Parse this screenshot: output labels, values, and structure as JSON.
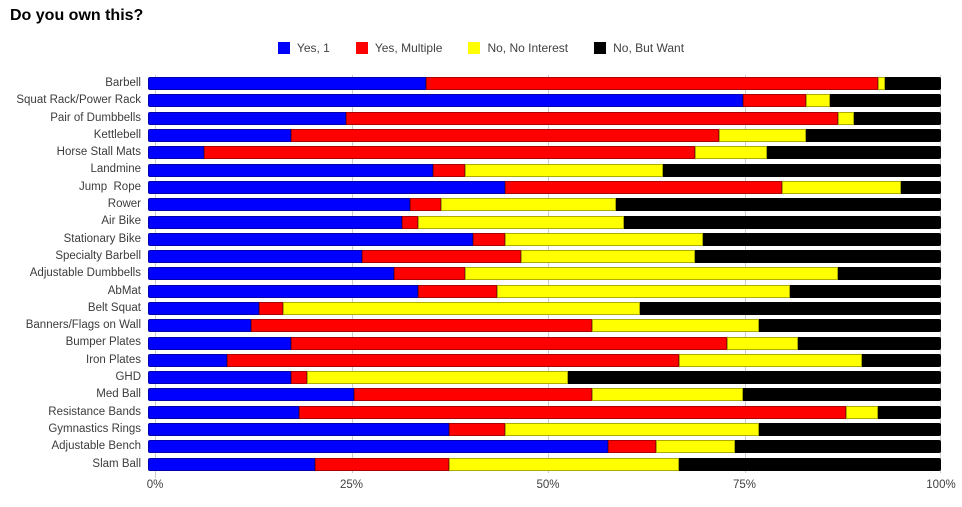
{
  "title": "Do you own this?",
  "legend": [
    {
      "label": "Yes, 1",
      "color": "#0000ff"
    },
    {
      "label": "Yes, Multiple",
      "color": "#ff0000"
    },
    {
      "label": "No, No Interest",
      "color": "#ffff00"
    },
    {
      "label": "No, But Want",
      "color": "#000000"
    }
  ],
  "axis": {
    "tick_labels": [
      "0%",
      "25%",
      "50%",
      "75%",
      "100%"
    ],
    "tick_values": [
      0,
      25,
      50,
      75,
      100
    ]
  },
  "chart_data": {
    "type": "bar",
    "orientation": "horizontal",
    "stacked": true,
    "title": "Do you own this?",
    "xlim": [
      0,
      100
    ],
    "x_tick_labels": [
      "0%",
      "25%",
      "50%",
      "75%",
      "100%"
    ],
    "legend_position": "top",
    "grid": "vertical-light-gray",
    "categories": [
      "Barbell",
      "Squat Rack/Power Rack",
      "Pair of Dumbbells",
      "Kettlebell",
      "Horse Stall Mats",
      "Landmine",
      "Jump  Rope",
      "Rower",
      "Air Bike",
      "Stationary Bike",
      "Specialty Barbell",
      "Adjustable Dumbbells",
      "AbMat",
      "Belt Squat",
      "Banners/Flags on Wall",
      "Bumper Plates",
      "Iron Plates",
      "GHD",
      "Med Ball",
      "Resistance Bands",
      "Gymnastics Rings",
      "Adjustable Bench",
      "Slam Ball"
    ],
    "series": [
      {
        "name": "Yes, 1",
        "color": "#0000ff",
        "values": [
          35,
          75,
          25,
          18,
          7,
          36,
          45,
          33,
          32,
          41,
          27,
          31,
          34,
          14,
          13,
          18,
          10,
          18,
          26,
          19,
          38,
          58,
          21
        ]
      },
      {
        "name": "Yes, Multiple",
        "color": "#ff0000",
        "values": [
          57,
          8,
          62,
          54,
          62,
          4,
          35,
          4,
          2,
          4,
          20,
          9,
          10,
          3,
          43,
          55,
          57,
          2,
          30,
          69,
          7,
          6,
          17
        ]
      },
      {
        "name": "No, No Interest",
        "color": "#ffff00",
        "values": [
          1,
          3,
          2,
          11,
          9,
          25,
          15,
          22,
          26,
          25,
          22,
          47,
          37,
          45,
          21,
          9,
          23,
          33,
          19,
          4,
          32,
          10,
          29
        ]
      },
      {
        "name": "No, But Want",
        "color": "#000000",
        "values": [
          7,
          14,
          11,
          17,
          22,
          35,
          5,
          41,
          40,
          30,
          31,
          13,
          19,
          38,
          23,
          18,
          10,
          47,
          25,
          8,
          23,
          26,
          33
        ]
      }
    ]
  }
}
